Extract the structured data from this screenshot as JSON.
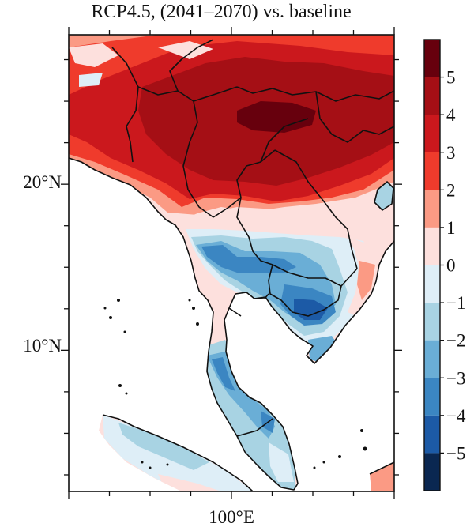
{
  "title": "RCP4.5, (2041–2070) vs. baseline",
  "axes": {
    "lat_labels": [
      {
        "text": "20°N",
        "value": 20
      },
      {
        "text": "10°N",
        "value": 10
      }
    ],
    "lon_labels": [
      {
        "text": "100°E",
        "value": 100
      }
    ],
    "lon_range": [
      90,
      110
    ],
    "lat_range": [
      1.5,
      29
    ]
  },
  "colorbar": {
    "labels": [
      "5",
      "4",
      "3",
      "2",
      "1",
      "0",
      "−1",
      "−2",
      "−3",
      "−4",
      "−5"
    ],
    "bins_top_to_bottom": [
      {
        "range": "> 5",
        "color": "#67000d"
      },
      {
        "range": "4–5",
        "color": "#a50f15"
      },
      {
        "range": "3–4",
        "color": "#cb181d"
      },
      {
        "range": "2–3",
        "color": "#ef3b2c"
      },
      {
        "range": "1–2",
        "color": "#fb9a84"
      },
      {
        "range": "0–1",
        "color": "#fde0dd"
      },
      {
        "range": "−1–0",
        "color": "#deeef7"
      },
      {
        "range": "−2–−1",
        "color": "#a8d3e3"
      },
      {
        "range": "−3–−2",
        "color": "#6aaed6"
      },
      {
        "range": "−4–−3",
        "color": "#3b86c2"
      },
      {
        "range": "−5–−4",
        "color": "#1c5aa6"
      },
      {
        "range": "< −5",
        "color": "#0a2751"
      }
    ]
  },
  "colors": {
    "frame": "#111111",
    "ocean": "#ffffff",
    "boundary": "#111111"
  }
}
